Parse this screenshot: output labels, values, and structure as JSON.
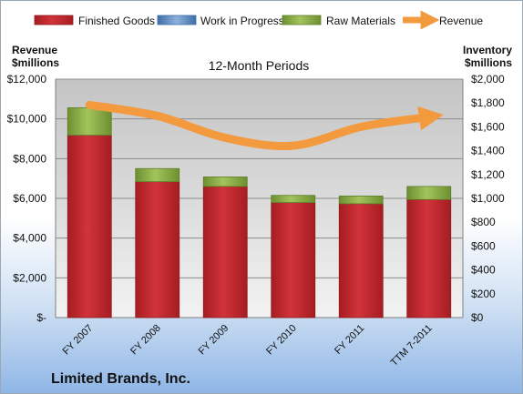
{
  "chart_data": {
    "type": "bar",
    "subtitle": "12-Month Periods",
    "company": "Limited Brands, Inc.",
    "left_axis_label": [
      "Revenue",
      "$millions"
    ],
    "right_axis_label": [
      "Inventory",
      "$millions"
    ],
    "categories": [
      "FY 2007",
      "FY 2008",
      "FY 2009",
      "FY 2010",
      "FY 2011",
      "TTM 7-2011"
    ],
    "left_ticks": [
      "$-",
      "$2,000",
      "$4,000",
      "$6,000",
      "$8,000",
      "$10,000",
      "$12,000"
    ],
    "right_ticks": [
      "$0",
      "$200",
      "$400",
      "$600",
      "$800",
      "$1,000",
      "$1,200",
      "$1,400",
      "$1,600",
      "$1,800",
      "$2,000"
    ],
    "ylim_left": [
      0,
      12000
    ],
    "ylim_right": [
      0,
      2000
    ],
    "stacked": true,
    "series": [
      {
        "name": "Finished Goods",
        "axis": "right",
        "color": "#c0272d",
        "values": [
          1530,
          1140,
          1100,
          965,
          955,
          990
        ]
      },
      {
        "name": "Work in Progress",
        "axis": "right",
        "color": "#4f81bd",
        "values": [
          0,
          0,
          0,
          0,
          0,
          0
        ]
      },
      {
        "name": "Raw Materials",
        "axis": "right",
        "color": "#8db04a",
        "values": [
          230,
          110,
          80,
          60,
          65,
          110
        ]
      },
      {
        "name": "Revenue",
        "axis": "left",
        "type": "line",
        "color": "#f39a3e",
        "values": [
          10700,
          10150,
          9050,
          8650,
          9600,
          10100
        ]
      }
    ],
    "grid": true,
    "legend": "top"
  }
}
